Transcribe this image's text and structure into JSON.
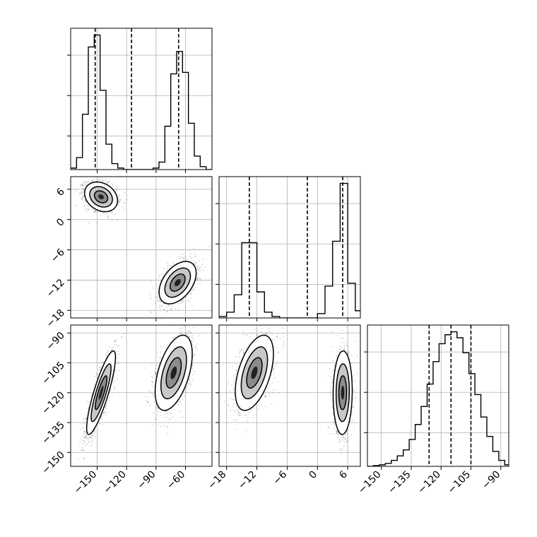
{
  "chart_data": {
    "type": "corner",
    "grid": true,
    "parameters": [
      "",
      "",
      ""
    ],
    "ticks": {
      "p0": [
        -150,
        -120,
        -90,
        -60
      ],
      "p1": [
        -18,
        -12,
        -6,
        0,
        6
      ],
      "p2": [
        -150,
        -135,
        -120,
        -105,
        -90
      ]
    },
    "tick_labels": {
      "p0": [
        "−150",
        "−120",
        "−90",
        "−60"
      ],
      "p1": [
        "−18",
        "−12",
        "−6",
        "0",
        "6"
      ],
      "p2": [
        "−150",
        "−135",
        "−120",
        "−105",
        "−90"
      ]
    },
    "ranges": {
      "p0": [
        -177,
        -33
      ],
      "p1": [
        -19.5,
        8.5
      ],
      "p2": [
        -157,
        -86
      ]
    },
    "histograms": [
      {
        "param": "p0",
        "bins": [
          -177,
          -171,
          -165,
          -159,
          -153,
          -147,
          -141,
          -135,
          -129,
          -123,
          -117,
          -111,
          -105,
          -99,
          -93,
          -87,
          -81,
          -75,
          -69,
          -63,
          -57,
          -51,
          -45,
          -39,
          -33
        ],
        "counts": [
          0.01,
          0.08,
          0.37,
          0.82,
          0.9,
          0.53,
          0.17,
          0.04,
          0.01,
          0,
          0,
          0,
          0,
          0,
          0.01,
          0.05,
          0.29,
          0.64,
          0.79,
          0.65,
          0.31,
          0.09,
          0.02,
          0
        ],
        "quantiles": [
          -152,
          -115,
          -67
        ]
      },
      {
        "param": "p1",
        "bins": [
          -19.5,
          -18.0,
          -16.5,
          -15.0,
          -13.5,
          -12.0,
          -10.5,
          -9.0,
          -7.5,
          -6.0,
          -4.5,
          -3.0,
          -1.5,
          0.0,
          1.5,
          3.0,
          4.5,
          6.0,
          7.5,
          8.5
        ],
        "counts": [
          0.01,
          0.04,
          0.16,
          0.52,
          0.52,
          0.18,
          0.04,
          0.01,
          0,
          0,
          0,
          0,
          0,
          0.03,
          0.22,
          0.53,
          0.93,
          0.24,
          0.05
        ],
        "quantiles": [
          -13.5,
          -2.0,
          5.0
        ]
      },
      {
        "param": "p2",
        "bins": [
          -157,
          -154,
          -151,
          -148,
          -145,
          -142,
          -139,
          -136,
          -133,
          -130,
          -127,
          -124,
          -121,
          -118,
          -115,
          -112,
          -109,
          -106,
          -103,
          -100,
          -97,
          -94,
          -91,
          -88,
          -86
        ],
        "counts": [
          0,
          0.005,
          0.01,
          0.02,
          0.04,
          0.07,
          0.11,
          0.18,
          0.28,
          0.4,
          0.55,
          0.7,
          0.82,
          0.88,
          0.9,
          0.86,
          0.76,
          0.62,
          0.48,
          0.33,
          0.2,
          0.1,
          0.04,
          0.01
        ],
        "quantiles": [
          -126,
          -115,
          -105
        ]
      }
    ],
    "panels": [
      {
        "x": "p0",
        "y": "p1",
        "modes": [
          {
            "cx": -146,
            "cy": 4.5,
            "sx": 8,
            "sy": 1.4,
            "rho": -0.25,
            "n": 1500
          },
          {
            "cx": -68,
            "cy": -12.5,
            "sx": 9,
            "sy": 2.0,
            "rho": 0.45,
            "n": 1500
          }
        ]
      },
      {
        "x": "p0",
        "y": "p2",
        "modes": [
          {
            "cx": -146,
            "cy": -120,
            "sx": 7,
            "sy": 10,
            "rho": 0.85,
            "n": 1500
          },
          {
            "cx": -72,
            "cy": -110,
            "sx": 9,
            "sy": 9,
            "rho": 0.5,
            "n": 1500
          }
        ]
      },
      {
        "x": "p1",
        "y": "p2",
        "modes": [
          {
            "cx": -12.5,
            "cy": -110,
            "sx": 1.8,
            "sy": 9,
            "rho": 0.5,
            "n": 1500
          },
          {
            "cx": 5.0,
            "cy": -120,
            "sx": 0.9,
            "sy": 10,
            "rho": 0.05,
            "n": 1500
          }
        ]
      }
    ]
  }
}
